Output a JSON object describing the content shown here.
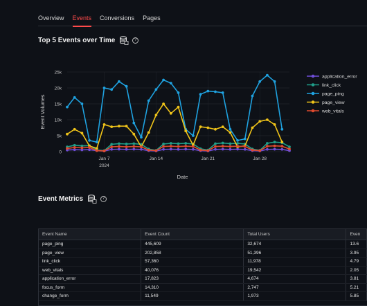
{
  "tabs": [
    {
      "label": "Overview",
      "active": false
    },
    {
      "label": "Events",
      "active": true
    },
    {
      "label": "Conversions",
      "active": false
    },
    {
      "label": "Pages",
      "active": false
    }
  ],
  "chart_section": {
    "title": "Top 5 Events over Time",
    "icon": "database-icon"
  },
  "metrics_section": {
    "title": "Event Metrics",
    "icon": "database-icon"
  },
  "chart_data": {
    "type": "line",
    "xlabel": "Date",
    "ylabel": "Event Volumes",
    "ylim": [
      0,
      25000
    ],
    "yticks": [
      "0",
      "5k",
      "10k",
      "15k",
      "20k",
      "25k"
    ],
    "xticks": [
      {
        "day": 5,
        "label": "Jan 7",
        "sub": "2024"
      },
      {
        "day": 12,
        "label": "Jan 14",
        "sub": ""
      },
      {
        "day": 19,
        "label": "Jan 21",
        "sub": ""
      },
      {
        "day": 26,
        "label": "Jan 28",
        "sub": ""
      }
    ],
    "x_days": [
      0,
      1,
      2,
      3,
      4,
      5,
      6,
      7,
      8,
      9,
      10,
      11,
      12,
      13,
      14,
      15,
      16,
      17,
      18,
      19,
      20,
      21,
      22,
      23,
      24,
      25,
      26,
      27,
      28,
      29,
      30
    ],
    "legend_position": "right",
    "series": [
      {
        "name": "application_error",
        "color": "#6f4ed8",
        "values": [
          500,
          600,
          550,
          600,
          300,
          200,
          700,
          750,
          700,
          750,
          700,
          300,
          200,
          700,
          750,
          700,
          750,
          700,
          300,
          200,
          700,
          750,
          700,
          750,
          700,
          300,
          200,
          700,
          750,
          700,
          300
        ]
      },
      {
        "name": "link_click",
        "color": "#1f9e89",
        "values": [
          1500,
          2000,
          1800,
          1900,
          500,
          300,
          2300,
          2500,
          2400,
          2500,
          2300,
          800,
          400,
          2400,
          2600,
          2500,
          2600,
          2400,
          900,
          500,
          2500,
          2700,
          2500,
          2600,
          2400,
          800,
          400,
          2600,
          3000,
          2800,
          1500
        ]
      },
      {
        "name": "page_ping",
        "color": "#1fa2e0",
        "values": [
          14000,
          17000,
          15000,
          3500,
          3000,
          20000,
          19500,
          22000,
          20500,
          9000,
          4500,
          16000,
          19500,
          22500,
          21500,
          18500,
          7000,
          5000,
          18000,
          19000,
          18800,
          18500,
          7000,
          3500,
          4000,
          17500,
          22000,
          24000,
          22000,
          7000,
          null
        ]
      },
      {
        "name": "page_view",
        "color": "#f0c419",
        "values": [
          5500,
          7000,
          5800,
          1800,
          1000,
          8500,
          7800,
          8000,
          8000,
          5500,
          1500,
          6000,
          11500,
          15000,
          12000,
          14000,
          6500,
          2000,
          7800,
          7500,
          7000,
          7800,
          6000,
          1500,
          1800,
          7500,
          9500,
          10000,
          8500,
          3000,
          null
        ]
      },
      {
        "name": "web_vitals",
        "color": "#e04a2f",
        "values": [
          1000,
          1300,
          1200,
          1300,
          300,
          200,
          1500,
          1600,
          1500,
          1600,
          1500,
          500,
          300,
          1600,
          1700,
          1600,
          1700,
          1600,
          500,
          300,
          1600,
          1700,
          1600,
          1700,
          1600,
          500,
          300,
          1700,
          1800,
          1700,
          800
        ]
      }
    ]
  },
  "table": {
    "columns": [
      "Event Name",
      "Event Count",
      "Total Users",
      "Even"
    ],
    "rows": [
      [
        "page_ping",
        "445,609",
        "32,674",
        "13.6"
      ],
      [
        "page_view",
        "202,858",
        "51,396",
        "3.95"
      ],
      [
        "link_click",
        "57,360",
        "11,978",
        "4.79"
      ],
      [
        "web_vitals",
        "40,076",
        "19,542",
        "2.05"
      ],
      [
        "application_error",
        "17,823",
        "4,674",
        "3.81"
      ],
      [
        "focus_form",
        "14,310",
        "2,747",
        "5.21"
      ],
      [
        "change_form",
        "11,549",
        "1,973",
        "5.85"
      ]
    ]
  }
}
